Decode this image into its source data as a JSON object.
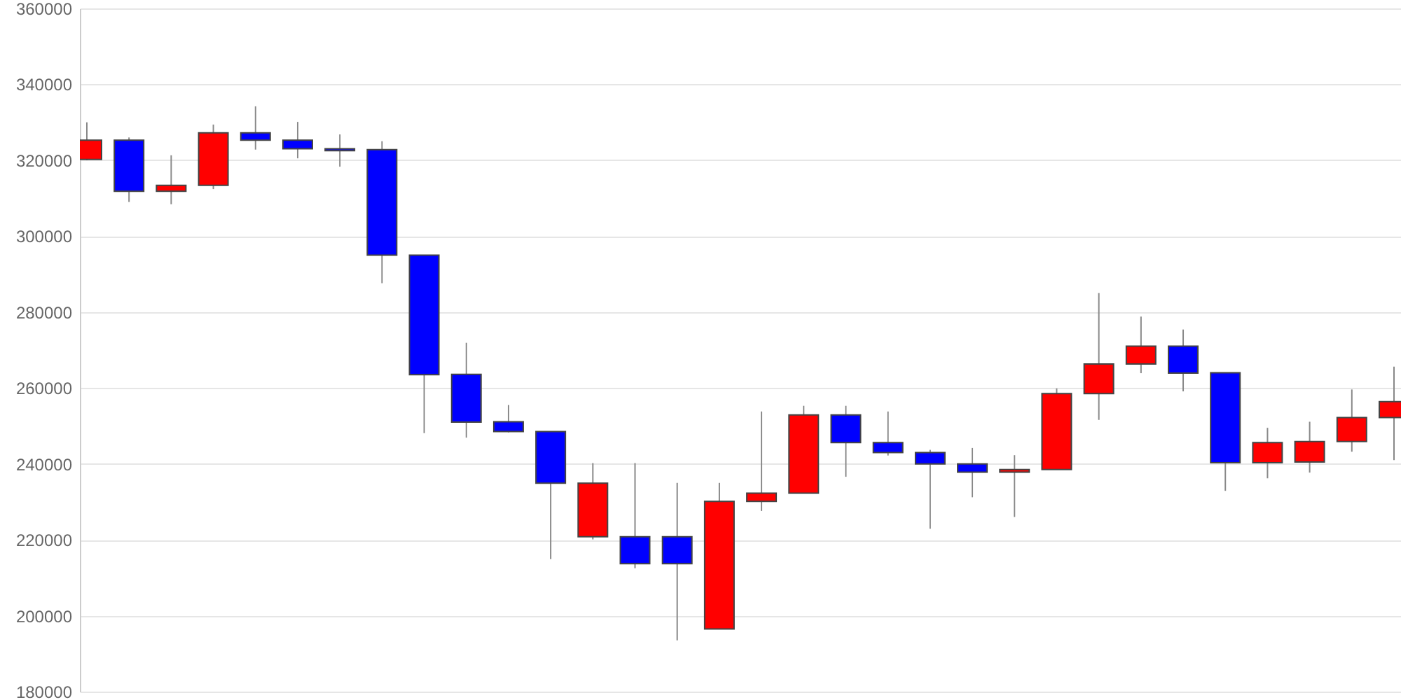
{
  "chart_data": {
    "type": "candlestick",
    "categories": [
      null,
      null,
      null,
      null,
      null,
      null,
      null,
      null,
      null,
      null,
      null,
      null,
      null,
      null,
      null,
      null,
      null,
      null,
      null,
      null,
      null,
      null,
      null,
      null,
      null,
      null,
      null,
      null,
      null,
      null,
      null,
      null
    ],
    "ohlc": [
      [
        320200,
        330000,
        320000,
        325300
      ],
      [
        325300,
        326000,
        309000,
        311800
      ],
      [
        311800,
        321300,
        308400,
        313400
      ],
      [
        313400,
        329400,
        312400,
        327200
      ],
      [
        327200,
        334200,
        322800,
        325300
      ],
      [
        325300,
        330100,
        320500,
        323000
      ],
      [
        323000,
        326800,
        318300,
        322500
      ],
      [
        322800,
        325000,
        287600,
        295000
      ],
      [
        295000,
        295000,
        248100,
        263500
      ],
      [
        263600,
        271900,
        246900,
        251000
      ],
      [
        251100,
        255500,
        248300,
        248500
      ],
      [
        248500,
        248500,
        214900,
        234900
      ],
      [
        220800,
        240200,
        220100,
        234900
      ],
      [
        220800,
        240200,
        212500,
        213700
      ],
      [
        220800,
        235000,
        193500,
        213700
      ],
      [
        196500,
        235000,
        196500,
        230100
      ],
      [
        230100,
        253800,
        227600,
        232300
      ],
      [
        232300,
        255300,
        232300,
        252900
      ],
      [
        252900,
        255300,
        236600,
        245600
      ],
      [
        245600,
        253800,
        242200,
        243000
      ],
      [
        243000,
        243700,
        222900,
        240000
      ],
      [
        240000,
        244200,
        231200,
        237800
      ],
      [
        237800,
        242300,
        226000,
        238500
      ],
      [
        238500,
        259900,
        238500,
        258500
      ],
      [
        258500,
        285000,
        251600,
        266300
      ],
      [
        266300,
        278800,
        263900,
        271000
      ],
      [
        271000,
        275400,
        259100,
        263900
      ],
      [
        264000,
        264000,
        232900,
        240300
      ],
      [
        240300,
        249500,
        236200,
        245600
      ],
      [
        240500,
        251100,
        237700,
        245900
      ],
      [
        245900,
        259600,
        243200,
        252200
      ],
      [
        252200,
        265600,
        241000,
        256400
      ]
    ],
    "colors": [
      "#ff0000",
      "#0000ff",
      "#ff0000",
      "#ff0000",
      "#0000ff",
      "#0000ff",
      "#0000ff",
      "#0000ff",
      "#0000ff",
      "#0000ff",
      "#0000ff",
      "#0000ff",
      "#ff0000",
      "#0000ff",
      "#0000ff",
      "#ff0000",
      "#ff0000",
      "#ff0000",
      "#0000ff",
      "#0000ff",
      "#0000ff",
      "#0000ff",
      "#ff0000",
      "#ff0000",
      "#ff0000",
      "#ff0000",
      "#0000ff",
      "#0000ff",
      "#ff0000",
      "#ff0000",
      "#ff0000",
      "#ff0000"
    ],
    "ylim": [
      180000,
      360000
    ],
    "yticks": [
      180000,
      200000,
      220000,
      240000,
      260000,
      280000,
      300000,
      320000,
      340000,
      360000
    ],
    "grid": "y"
  }
}
